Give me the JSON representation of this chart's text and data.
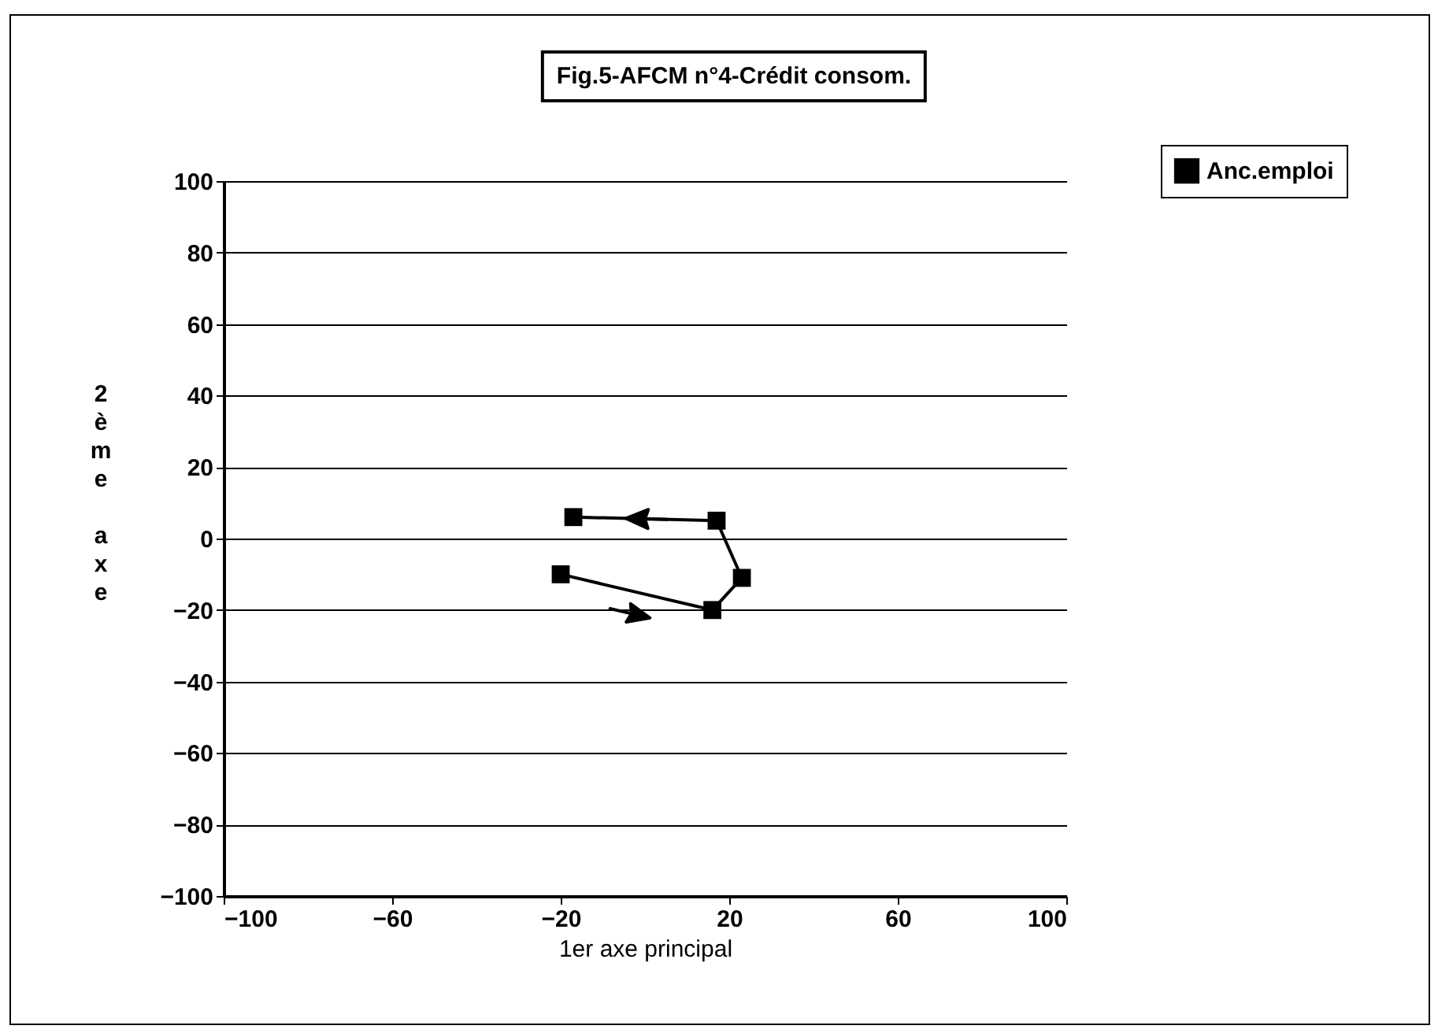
{
  "chart_data": {
    "type": "line",
    "title": "Fig.5-AFCM n°4-Crédit consom.",
    "xlabel": "1er axe principal",
    "ylabel": "2ème axe",
    "x": [
      -20,
      16,
      23,
      17,
      -17
    ],
    "series": [
      {
        "name": "Anc.emploi",
        "color": "#000000",
        "values": [
          -10,
          -20,
          -11,
          5,
          6
        ]
      }
    ],
    "xlim": [
      -100,
      100
    ],
    "xticks": [
      -100,
      -60,
      -20,
      20,
      60,
      100
    ],
    "ylim": [
      -100,
      100
    ],
    "yticks": [
      -100,
      -80,
      -60,
      -40,
      -20,
      0,
      20,
      40,
      60,
      80,
      100
    ],
    "grid": "y",
    "legend": "top right",
    "marker": "square",
    "line_style": "solid"
  }
}
